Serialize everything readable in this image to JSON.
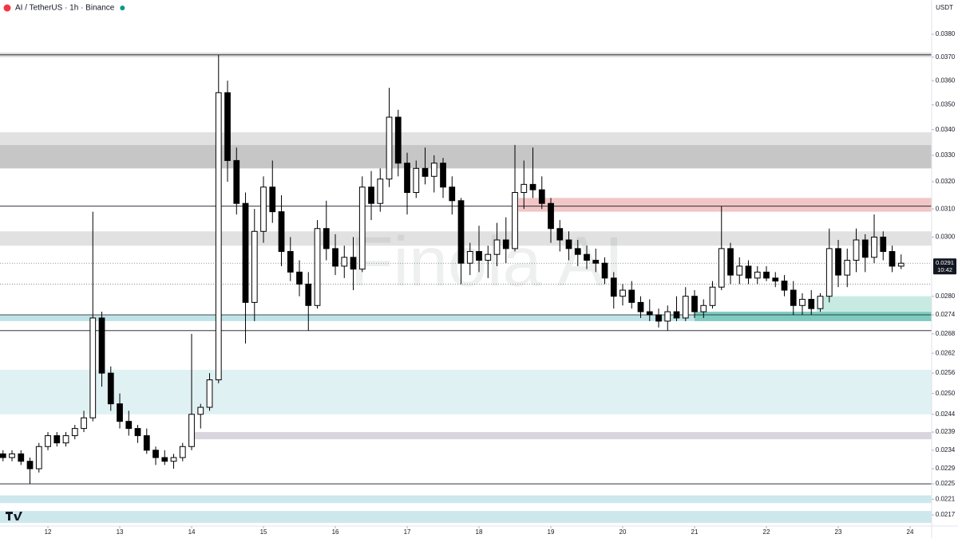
{
  "chart_data": {
    "type": "candlestick",
    "title": "AI / TetherUS · 1h · Binance",
    "currency": "USDT",
    "watermark": "Finola AI",
    "up_color": "#ffffff",
    "down_color": "#000000",
    "log_scale": true,
    "x": [
      11.375,
      11.5,
      11.625,
      11.75,
      11.875,
      12,
      12.125,
      12.25,
      12.375,
      12.5,
      12.625,
      12.75,
      12.875,
      13,
      13.125,
      13.25,
      13.375,
      13.5,
      13.625,
      13.75,
      13.875,
      14,
      14.125,
      14.25,
      14.375,
      14.5,
      14.625,
      14.75,
      14.875,
      15,
      15.125,
      15.25,
      15.375,
      15.5,
      15.625,
      15.75,
      15.875,
      16,
      16.125,
      16.25,
      16.375,
      16.5,
      16.625,
      16.75,
      16.875,
      17,
      17.125,
      17.25,
      17.375,
      17.5,
      17.625,
      17.75,
      17.875,
      18,
      18.125,
      18.25,
      18.375,
      18.5,
      18.625,
      18.75,
      18.875,
      19,
      19.125,
      19.25,
      19.375,
      19.5,
      19.625,
      19.75,
      19.875,
      20,
      20.125,
      20.25,
      20.375,
      20.5,
      20.625,
      20.75,
      20.875,
      21,
      21.125,
      21.25,
      21.375,
      21.5,
      21.625,
      21.75,
      21.875,
      22,
      22.125,
      22.25,
      22.375,
      22.5,
      22.625,
      22.75,
      22.875,
      23,
      23.125,
      23.25,
      23.375,
      23.5,
      23.625,
      23.75,
      23.875
    ],
    "open": [
      0.0233,
      0.0232,
      0.0233,
      0.0231,
      0.0229,
      0.0235,
      0.0238,
      0.0236,
      0.0238,
      0.024,
      0.0243,
      0.0273,
      0.0256,
      0.0247,
      0.0242,
      0.024,
      0.0238,
      0.0234,
      0.0232,
      0.0231,
      0.0232,
      0.0235,
      0.0244,
      0.0246,
      0.0254,
      0.0355,
      0.0328,
      0.0312,
      0.0278,
      0.0302,
      0.0318,
      0.0309,
      0.0295,
      0.0288,
      0.0284,
      0.0277,
      0.0303,
      0.0296,
      0.029,
      0.0293,
      0.0289,
      0.0318,
      0.0312,
      0.0321,
      0.0345,
      0.0327,
      0.0316,
      0.0325,
      0.0322,
      0.0327,
      0.0318,
      0.0313,
      0.0291,
      0.0295,
      0.0292,
      0.0294,
      0.0299,
      0.0296,
      0.0316,
      0.0319,
      0.0317,
      0.0312,
      0.0303,
      0.0299,
      0.0296,
      0.0294,
      0.0292,
      0.0291,
      0.0286,
      0.028,
      0.0282,
      0.0278,
      0.0275,
      0.0274,
      0.0272,
      0.0275,
      0.0273,
      0.028,
      0.0275,
      0.0277,
      0.0283,
      0.0296,
      0.0287,
      0.029,
      0.0286,
      0.0288,
      0.0286,
      0.0285,
      0.0282,
      0.0277,
      0.0279,
      0.0276,
      0.028,
      0.0296,
      0.0287,
      0.0292,
      0.0299,
      0.0293,
      0.03,
      0.0295,
      0.029
    ],
    "high": [
      0.0234,
      0.0234,
      0.0234,
      0.0232,
      0.0236,
      0.0239,
      0.0239,
      0.0239,
      0.0241,
      0.0245,
      0.0309,
      0.0275,
      0.0258,
      0.025,
      0.0245,
      0.0241,
      0.024,
      0.0235,
      0.0234,
      0.0233,
      0.0236,
      0.0268,
      0.0247,
      0.0256,
      0.0371,
      0.036,
      0.0333,
      0.0316,
      0.031,
      0.0322,
      0.0328,
      0.0315,
      0.03,
      0.0292,
      0.0288,
      0.0306,
      0.0313,
      0.0301,
      0.0297,
      0.03,
      0.0322,
      0.0324,
      0.0325,
      0.0357,
      0.0348,
      0.0331,
      0.0328,
      0.0333,
      0.033,
      0.0329,
      0.0322,
      0.0314,
      0.0298,
      0.0304,
      0.0297,
      0.0305,
      0.0307,
      0.0334,
      0.0328,
      0.0333,
      0.0322,
      0.0314,
      0.0306,
      0.0302,
      0.0299,
      0.0297,
      0.0296,
      0.0293,
      0.0288,
      0.0284,
      0.0285,
      0.028,
      0.0279,
      0.0276,
      0.0277,
      0.028,
      0.0283,
      0.0282,
      0.0279,
      0.0285,
      0.0311,
      0.0298,
      0.0293,
      0.0292,
      0.029,
      0.029,
      0.0288,
      0.0287,
      0.0285,
      0.0281,
      0.0282,
      0.0281,
      0.0303,
      0.0299,
      0.0296,
      0.0303,
      0.0301,
      0.0308,
      0.0302,
      0.0297,
      0.0294
    ],
    "low": [
      0.0231,
      0.0231,
      0.023,
      0.0225,
      0.0228,
      0.0234,
      0.0235,
      0.0235,
      0.0237,
      0.0239,
      0.0242,
      0.0252,
      0.0245,
      0.024,
      0.0238,
      0.0236,
      0.0233,
      0.023,
      0.023,
      0.0229,
      0.0231,
      0.0234,
      0.024,
      0.0245,
      0.0253,
      0.032,
      0.0308,
      0.0265,
      0.0272,
      0.0298,
      0.0305,
      0.029,
      0.0285,
      0.028,
      0.0269,
      0.0276,
      0.0292,
      0.0287,
      0.0286,
      0.0282,
      0.0288,
      0.0306,
      0.0309,
      0.0318,
      0.0322,
      0.0308,
      0.0314,
      0.0319,
      0.0316,
      0.0314,
      0.0308,
      0.0284,
      0.0287,
      0.0288,
      0.0286,
      0.029,
      0.0291,
      0.0295,
      0.031,
      0.0314,
      0.031,
      0.0298,
      0.0295,
      0.0292,
      0.029,
      0.0289,
      0.0288,
      0.0284,
      0.0276,
      0.0277,
      0.0276,
      0.0273,
      0.0272,
      0.027,
      0.0269,
      0.0272,
      0.0272,
      0.0273,
      0.0273,
      0.0276,
      0.0282,
      0.0284,
      0.0284,
      0.0284,
      0.0284,
      0.0285,
      0.0283,
      0.028,
      0.0274,
      0.0274,
      0.0274,
      0.0275,
      0.0278,
      0.0283,
      0.0283,
      0.0288,
      0.0288,
      0.0291,
      0.0292,
      0.0288,
      0.0289
    ],
    "close": [
      0.0232,
      0.0233,
      0.0231,
      0.0229,
      0.0235,
      0.0238,
      0.0236,
      0.0238,
      0.024,
      0.0243,
      0.0273,
      0.0256,
      0.0247,
      0.0242,
      0.024,
      0.0238,
      0.0234,
      0.0232,
      0.0231,
      0.0232,
      0.0235,
      0.0244,
      0.0246,
      0.0254,
      0.0355,
      0.0328,
      0.0312,
      0.0278,
      0.0302,
      0.0318,
      0.0309,
      0.0295,
      0.0288,
      0.0284,
      0.0277,
      0.0303,
      0.0296,
      0.029,
      0.0293,
      0.0289,
      0.0318,
      0.0312,
      0.0321,
      0.0345,
      0.0327,
      0.0316,
      0.0325,
      0.0322,
      0.0327,
      0.0318,
      0.0313,
      0.0291,
      0.0295,
      0.0292,
      0.0294,
      0.0299,
      0.0296,
      0.0316,
      0.0319,
      0.0317,
      0.0312,
      0.0303,
      0.0299,
      0.0296,
      0.0294,
      0.0292,
      0.0291,
      0.0286,
      0.028,
      0.0282,
      0.0278,
      0.0275,
      0.0274,
      0.0272,
      0.0275,
      0.0273,
      0.028,
      0.0275,
      0.0277,
      0.0283,
      0.0296,
      0.0287,
      0.029,
      0.0286,
      0.0288,
      0.0286,
      0.0285,
      0.0282,
      0.0277,
      0.0279,
      0.0276,
      0.028,
      0.0296,
      0.0287,
      0.0292,
      0.0299,
      0.0293,
      0.03,
      0.0295,
      0.029,
      0.0291
    ],
    "xlim": [
      11.333,
      24.3
    ],
    "xticks": [
      12,
      13,
      14,
      15,
      16,
      17,
      18,
      19,
      20,
      21,
      22,
      23,
      24
    ],
    "ylim": [
      0.02142,
      0.03955
    ],
    "yticks": [
      {
        "value": 0.038,
        "label": "0.0380"
      },
      {
        "value": 0.037,
        "label": "0.0370"
      },
      {
        "value": 0.036,
        "label": "0.0360"
      },
      {
        "value": 0.035,
        "label": "0.0350"
      },
      {
        "value": 0.034,
        "label": "0.0340"
      },
      {
        "value": 0.033,
        "label": "0.0330"
      },
      {
        "value": 0.032,
        "label": "0.0320"
      },
      {
        "value": 0.031,
        "label": "0.0310"
      },
      {
        "value": 0.03,
        "label": "0.0300"
      },
      {
        "value": 0.028,
        "label": "0.0280"
      },
      0.0274,
      0.0268,
      0.0262,
      0.0256,
      {
        "value": 0.025,
        "label": "0.0250"
      },
      0.0244,
      0.0239,
      0.0234,
      0.0229,
      0.0225,
      0.0221,
      0.0217
    ],
    "last_price": 0.0291,
    "countdown": "10:42",
    "zones": [
      {
        "low": 0.037,
        "high": 0.0372,
        "color": "#dcdcdc",
        "x_start": 11.333
      },
      {
        "low": 0.0334,
        "high": 0.0339,
        "color": "#e1e1e1",
        "x_start": 11.333
      },
      {
        "low": 0.0325,
        "high": 0.0334,
        "color": "#c6c6c6",
        "x_start": 11.333
      },
      {
        "low": 0.0309,
        "high": 0.0314,
        "color": "#f2c6c6",
        "x_start": 18.55
      },
      {
        "low": 0.0297,
        "high": 0.0302,
        "color": "#e1e1e1",
        "x_start": 11.333
      },
      {
        "low": 0.0272,
        "high": 0.0274,
        "color": "#bfe3e6",
        "x_start": 11.333
      },
      {
        "low": 0.0244,
        "high": 0.0257,
        "color": "#e0f1f3",
        "x_start": 11.333
      },
      {
        "low": 0.0237,
        "high": 0.0239,
        "color": "#d8d5de",
        "x_start": 14
      },
      {
        "low": 0.022,
        "high": 0.0222,
        "color": "#cde8ec",
        "x_start": 11.333
      },
      {
        "low": 0.0215,
        "high": 0.0218,
        "color": "#cde8ec",
        "x_start": 11.333
      },
      {
        "low": 0.0272,
        "high": 0.0275,
        "color": "#7fcbbf",
        "x_start": 21
      },
      {
        "low": 0.0275,
        "high": 0.028,
        "color": "#c7ebe3",
        "x_start": 22.7
      }
    ],
    "lines": [
      0.0371,
      0.0311,
      0.0274,
      0.0269,
      0.0225
    ],
    "dotted_lines": [
      0.0291,
      0.0284
    ]
  }
}
